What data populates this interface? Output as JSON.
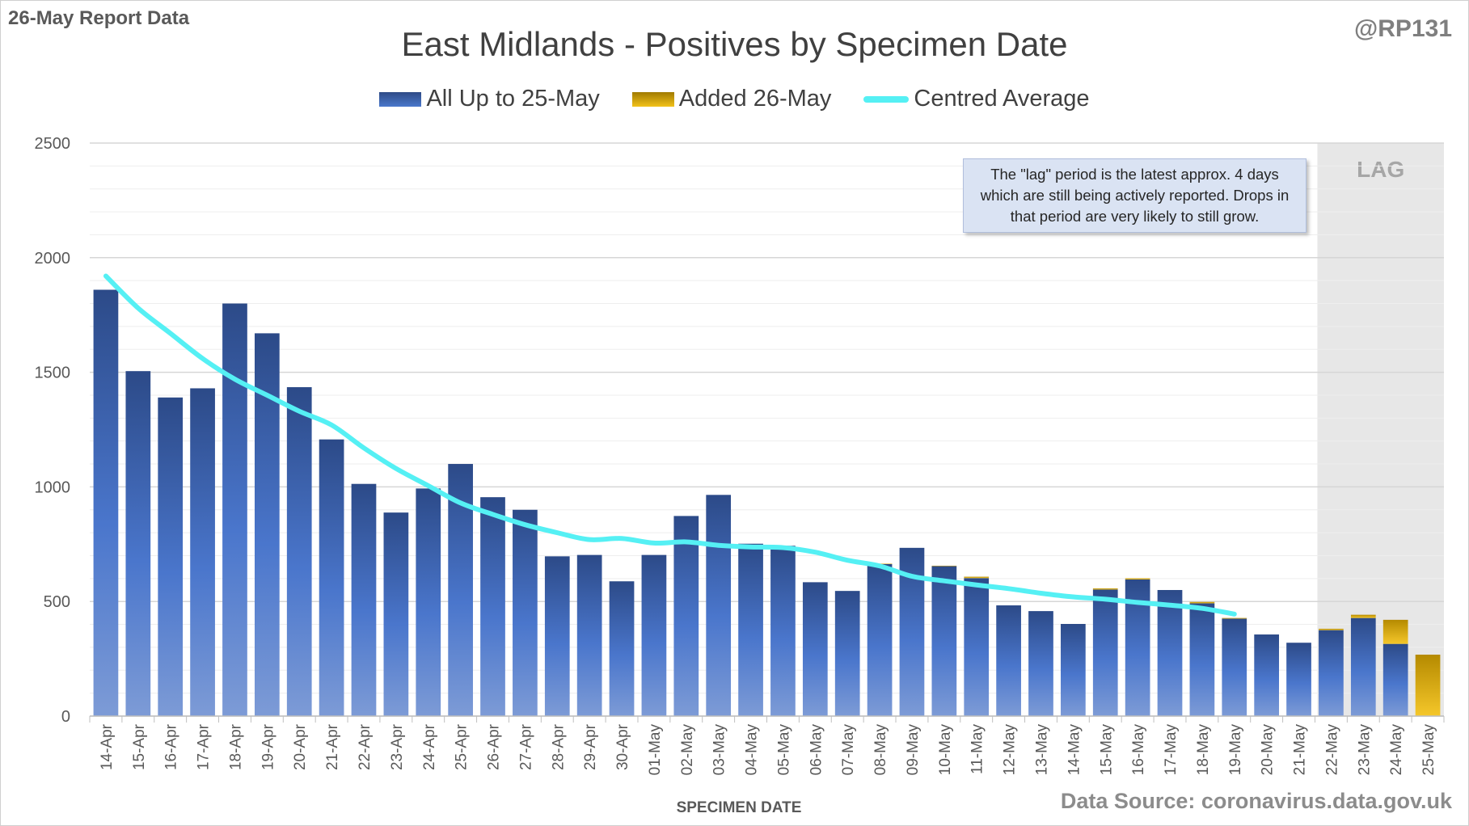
{
  "header": {
    "report_label": "26-May Report Data",
    "handle": "@RP131"
  },
  "chart_data": {
    "type": "bar",
    "title": "East Midlands - Positives by Specimen Date",
    "xlabel": "SPECIMEN DATE",
    "ylabel": "",
    "ylim": [
      0,
      2500
    ],
    "yticks": [
      0,
      500,
      1000,
      1500,
      2000,
      2500
    ],
    "grid": true,
    "legend_position": "top",
    "categories": [
      "14-Apr",
      "15-Apr",
      "16-Apr",
      "17-Apr",
      "18-Apr",
      "19-Apr",
      "20-Apr",
      "21-Apr",
      "22-Apr",
      "23-Apr",
      "24-Apr",
      "25-Apr",
      "26-Apr",
      "27-Apr",
      "28-Apr",
      "29-Apr",
      "30-Apr",
      "01-May",
      "02-May",
      "03-May",
      "04-May",
      "05-May",
      "06-May",
      "07-May",
      "08-May",
      "09-May",
      "10-May",
      "11-May",
      "12-May",
      "13-May",
      "14-May",
      "15-May",
      "16-May",
      "17-May",
      "18-May",
      "19-May",
      "20-May",
      "21-May",
      "22-May",
      "23-May",
      "24-May",
      "25-May"
    ],
    "series": [
      {
        "name": "All Up to 25-May",
        "type": "bar",
        "color": "#3f68b5",
        "values": [
          1860,
          1505,
          1390,
          1430,
          1800,
          1670,
          1435,
          1207,
          1013,
          888,
          993,
          1100,
          955,
          900,
          697,
          703,
          588,
          703,
          873,
          965,
          752,
          743,
          584,
          546,
          663,
          734,
          654,
          602,
          483,
          458,
          402,
          552,
          596,
          550,
          492,
          425,
          356,
          320,
          375,
          428,
          315,
          0
        ]
      },
      {
        "name": "Added 26-May",
        "type": "bar",
        "color": "#e6b316",
        "values": [
          0,
          0,
          0,
          0,
          0,
          0,
          0,
          0,
          0,
          0,
          0,
          0,
          0,
          0,
          0,
          0,
          0,
          0,
          0,
          0,
          0,
          0,
          0,
          0,
          2,
          0,
          2,
          6,
          0,
          0,
          0,
          5,
          5,
          0,
          6,
          3,
          0,
          0,
          6,
          14,
          105,
          268
        ]
      },
      {
        "name": "Centred Average",
        "type": "line",
        "color": "#55f0f4",
        "values": [
          1920,
          1780,
          1670,
          1560,
          1470,
          1400,
          1330,
          1270,
          1170,
          1080,
          1005,
          930,
          880,
          835,
          800,
          770,
          775,
          755,
          760,
          745,
          738,
          735,
          715,
          680,
          655,
          610,
          590,
          572,
          556,
          536,
          520,
          510,
          496,
          484,
          470,
          445,
          null,
          null,
          null,
          null,
          null,
          null
        ]
      }
    ],
    "shaded_region": {
      "label": "LAG",
      "from": "22-May",
      "to": "25-May",
      "color": "#e7e7e7"
    },
    "annotation": "The \"lag\" period is the latest approx. 4 days which are still being actively reported.  Drops in that period are very likely to still grow."
  },
  "footer": {
    "source": "Data Source: coronavirus.data.gov.uk"
  }
}
